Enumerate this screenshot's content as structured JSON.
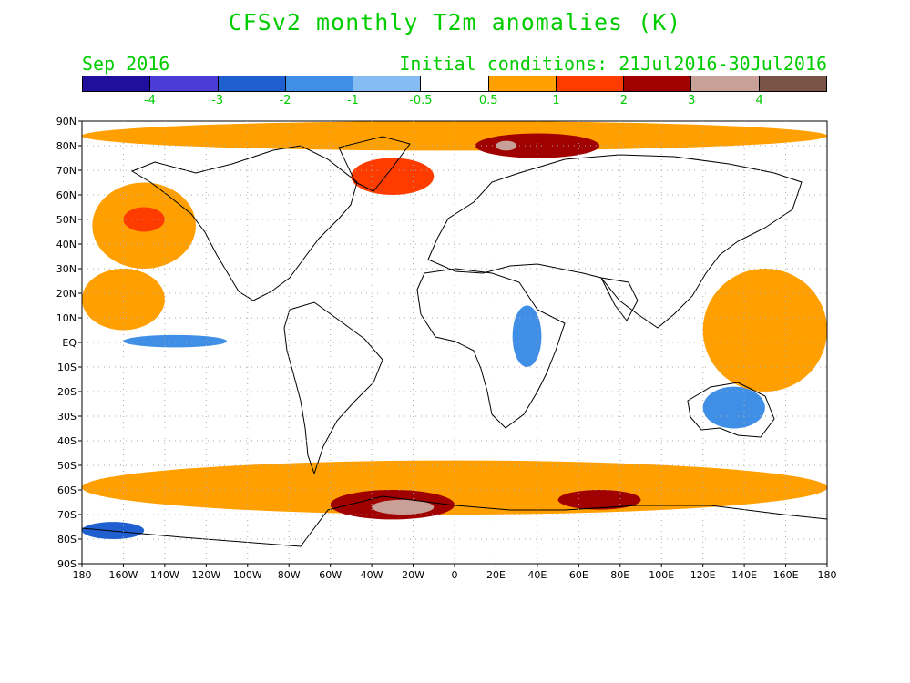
{
  "title": "CFSv2 monthly T2m anomalies (K)",
  "valid_month": "Sep 2016",
  "initial_conditions": "Initial conditions: 21Jul2016-30Jul2016",
  "legend": {
    "colors": [
      "#1f0f9c",
      "#4b3cd6",
      "#1f5fd0",
      "#3f8fe6",
      "#84bcf3",
      "#ffffff",
      "#ffa000",
      "#ff3c00",
      "#a00000",
      "#c8a097",
      "#7a5446"
    ],
    "labels": [
      "-4",
      "-3",
      "-2",
      "-1",
      "-0.5",
      "0.5",
      "1",
      "2",
      "3",
      "4"
    ]
  },
  "axes": {
    "lat_labels": [
      "90N",
      "80N",
      "70N",
      "60N",
      "50N",
      "40N",
      "30N",
      "20N",
      "10N",
      "EQ",
      "10S",
      "20S",
      "30S",
      "40S",
      "50S",
      "60S",
      "70S",
      "80S",
      "90S"
    ],
    "lon_labels": [
      "180",
      "160W",
      "140W",
      "120W",
      "100W",
      "80W",
      "60W",
      "40W",
      "20W",
      "0",
      "20E",
      "40E",
      "60E",
      "80E",
      "100E",
      "120E",
      "140E",
      "160E",
      "180"
    ]
  },
  "map": {
    "projection": "equirectangular",
    "lon_range": [
      -180,
      180
    ],
    "lat_range": [
      -90,
      90
    ],
    "grid": "dotted",
    "anomaly_regions": [
      {
        "name": "arctic-warm-band",
        "level": 1,
        "lon": [
          -180,
          180
        ],
        "lat": [
          78,
          90
        ]
      },
      {
        "name": "north-atlantic-warm",
        "level": 2,
        "lon": [
          -50,
          -10
        ],
        "lat": [
          60,
          75
        ]
      },
      {
        "name": "arctic-russia-hot",
        "level": 3,
        "lon": [
          10,
          70
        ],
        "lat": [
          75,
          85
        ]
      },
      {
        "name": "kara-sea-peak",
        "level": 4,
        "lon": [
          20,
          30
        ],
        "lat": [
          78,
          82
        ]
      },
      {
        "name": "northeast-pacific-warm",
        "level": 1,
        "lon": [
          -175,
          -125
        ],
        "lat": [
          30,
          65
        ]
      },
      {
        "name": "gulf-of-alaska-hot",
        "level": 2,
        "lon": [
          -160,
          -140
        ],
        "lat": [
          45,
          55
        ]
      },
      {
        "name": "tropical-pacific-warm",
        "level": 1,
        "lon": [
          -180,
          -140
        ],
        "lat": [
          5,
          30
        ]
      },
      {
        "name": "equatorial-pacific-cool",
        "level": -1,
        "lon": [
          -160,
          -110
        ],
        "lat": [
          -2,
          3
        ]
      },
      {
        "name": "southern-ocean-warm-belt",
        "level": 1,
        "lon": [
          -180,
          180
        ],
        "lat": [
          -70,
          -48
        ]
      },
      {
        "name": "south-atlantic-hot",
        "level": 3,
        "lon": [
          -60,
          0
        ],
        "lat": [
          -72,
          -60
        ]
      },
      {
        "name": "weddell-peak",
        "level": 4,
        "lon": [
          -40,
          -10
        ],
        "lat": [
          -70,
          -64
        ]
      },
      {
        "name": "indian-southern-hot",
        "level": 3,
        "lon": [
          50,
          90
        ],
        "lat": [
          -68,
          -60
        ]
      },
      {
        "name": "ross-sea-cool",
        "level": -2,
        "lon": [
          -180,
          -150
        ],
        "lat": [
          -80,
          -73
        ]
      },
      {
        "name": "australia-cool",
        "level": -1,
        "lon": [
          120,
          150
        ],
        "lat": [
          -35,
          -18
        ]
      },
      {
        "name": "east-africa-cool",
        "level": -1,
        "lon": [
          28,
          42
        ],
        "lat": [
          -10,
          15
        ]
      },
      {
        "name": "western-pacific-warm",
        "level": 1,
        "lon": [
          120,
          180
        ],
        "lat": [
          -20,
          30
        ]
      }
    ]
  }
}
